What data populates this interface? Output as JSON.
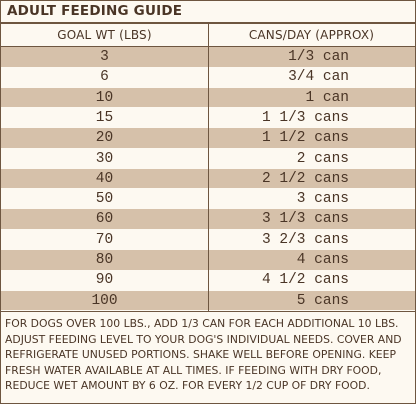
{
  "guide": {
    "title": "ADULT FEEDING GUIDE",
    "columns": {
      "weight": "GOAL WT (LBS)",
      "amount": "CANS/DAY (APPROX)"
    },
    "rows": [
      {
        "weight": "3",
        "amount": "1/3 can"
      },
      {
        "weight": "6",
        "amount": "3/4 can"
      },
      {
        "weight": "10",
        "amount": "1 can"
      },
      {
        "weight": "15",
        "amount": "1 1/3 cans"
      },
      {
        "weight": "20",
        "amount": "1 1/2 cans"
      },
      {
        "weight": "30",
        "amount": "2 cans"
      },
      {
        "weight": "40",
        "amount": "2 1/2 cans"
      },
      {
        "weight": "50",
        "amount": "3 cans"
      },
      {
        "weight": "60",
        "amount": "3 1/3 cans"
      },
      {
        "weight": "70",
        "amount": "3 2/3 cans"
      },
      {
        "weight": "80",
        "amount": "4 cans"
      },
      {
        "weight": "90",
        "amount": "4 1/2 cans"
      },
      {
        "weight": "100",
        "amount": "5 cans"
      }
    ],
    "note": "FOR DOGS OVER 100 LBS., ADD 1/3 CAN FOR EACH ADDITIONAL 10 LBS. ADJUST FEEDING LEVEL TO YOUR DOG'S INDIVIDUAL NEEDS. COVER AND REFRIGERATE UNUSED PORTIONS. SHAKE WELL BEFORE OPENING. KEEP FRESH WATER AVAILABLE AT ALL TIMES. IF FEEDING WITH DRY FOOD, REDUCE WET AMOUNT BY 6 OZ. FOR EVERY 1/2 CUP OF DRY FOOD."
  },
  "colors": {
    "ink": "#4a3526",
    "shade": "#d6c1aa",
    "paper": "#fdf9f1"
  }
}
